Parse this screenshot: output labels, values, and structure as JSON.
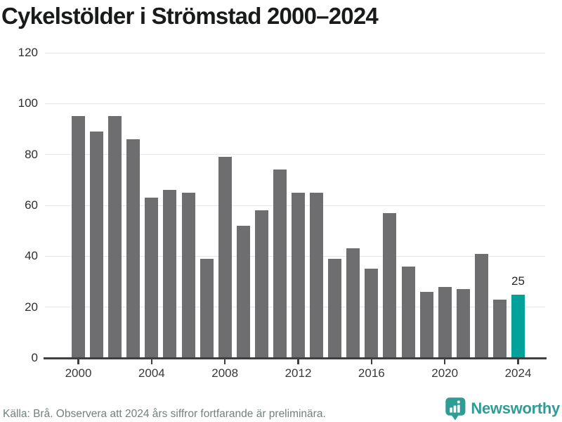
{
  "title": "Cykelstölder i Strömstad 2000–2024",
  "chart_data": {
    "type": "bar",
    "title": "Cykelstölder i Strömstad 2000–2024",
    "categories": [
      2000,
      2001,
      2002,
      2003,
      2004,
      2005,
      2006,
      2007,
      2008,
      2009,
      2010,
      2011,
      2012,
      2013,
      2014,
      2015,
      2016,
      2017,
      2018,
      2019,
      2020,
      2021,
      2022,
      2023,
      2024
    ],
    "values": [
      95,
      89,
      95,
      86,
      63,
      66,
      65,
      39,
      79,
      52,
      58,
      74,
      65,
      65,
      39,
      43,
      35,
      57,
      36,
      26,
      28,
      27,
      41,
      23,
      25
    ],
    "xlabel": "",
    "ylabel": "",
    "ylim": [
      0,
      120
    ],
    "yticks": [
      0,
      20,
      40,
      60,
      80,
      100,
      120
    ],
    "xticks": [
      2000,
      2004,
      2008,
      2012,
      2016,
      2020,
      2024
    ],
    "grid": "horizontal",
    "legend": "none",
    "bar_color": "#6e6e71",
    "highlight": {
      "year": 2024,
      "color": "#00a29a",
      "label": "25"
    }
  },
  "footer": {
    "source": "Källa: Brå. Observera att 2024 års siffror fortfarande är preliminära.",
    "logo_text": "Newsworthy"
  },
  "colors": {
    "gridline": "#e7e7e7",
    "axis": "#3e3f3f",
    "title_text": "#181b19",
    "tick_text": "#3a3a3a",
    "source_text": "#74807e",
    "logo_teal": "#2f9d95"
  }
}
